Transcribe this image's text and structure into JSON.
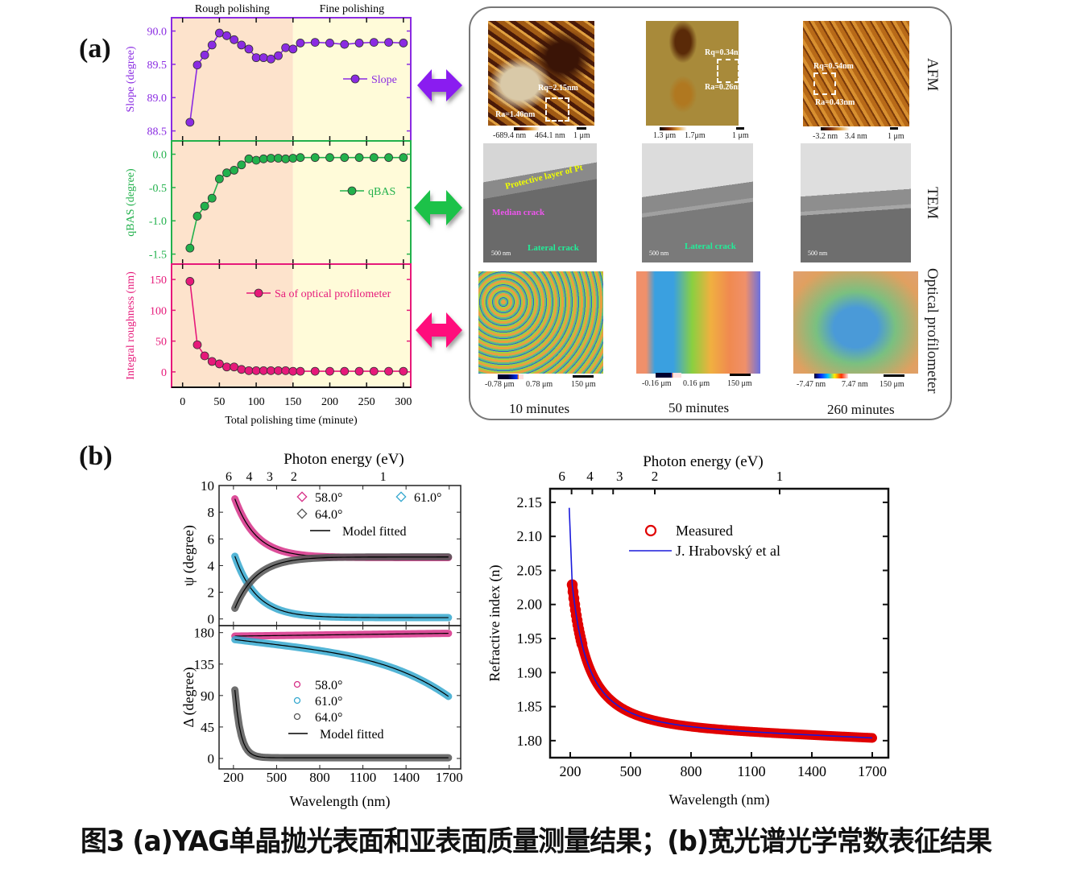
{
  "panel_a_label": "(a)",
  "panel_b_label": "(b)",
  "caption": "图3 (a)YAG单晶抛光表面和亚表面质量测量结果；(b)宽光谱光学常数表征结果",
  "colors": {
    "slope": "#8a2be2",
    "qbas": "#22b14c",
    "sa": "#e6197a",
    "rough_bg": "#fde3cc",
    "fine_bg": "#fffbd9",
    "measured": "#e00000",
    "hrabovsky": "#1a1adb",
    "psi_58": "#d62f87",
    "psi_61": "#35a8cf",
    "psi_64": "#555555"
  },
  "chart_data": [
    {
      "type": "line",
      "id": "polishing",
      "regions": [
        "Rough polishing",
        "Fine polishing"
      ],
      "region_split_x": 150,
      "xlabel": "Total polishing time (minute)",
      "x_ticks": [
        0,
        50,
        100,
        150,
        200,
        250,
        300
      ],
      "xlim": [
        -15,
        310
      ],
      "x": [
        10,
        20,
        30,
        40,
        50,
        60,
        70,
        80,
        90,
        100,
        110,
        120,
        130,
        140,
        150,
        160,
        180,
        200,
        220,
        240,
        260,
        280,
        300
      ],
      "subplots": [
        {
          "name": "Slope",
          "ylabel": "Slope (degree)",
          "ylim": [
            88.35,
            90.2
          ],
          "y_ticks": [
            "88.5",
            "89.0",
            "89.5",
            "90.0"
          ],
          "y_tick_values": [
            88.5,
            89.0,
            89.5,
            90.0
          ],
          "values": [
            88.63,
            89.49,
            89.64,
            89.79,
            89.97,
            89.93,
            89.87,
            89.79,
            89.73,
            89.6,
            89.6,
            89.58,
            89.63,
            89.75,
            89.73,
            89.82,
            89.83,
            89.82,
            89.8,
            89.82,
            89.83,
            89.83,
            89.82
          ],
          "legend": "Slope"
        },
        {
          "name": "qBAS",
          "ylabel": "qBAS (degree)",
          "ylim": [
            -1.65,
            0.2
          ],
          "y_ticks": [
            "-1.5",
            "-1.0",
            "-0.5",
            "0.0"
          ],
          "y_tick_values": [
            -1.5,
            -1.0,
            -0.5,
            0.0
          ],
          "values": [
            -1.41,
            -0.93,
            -0.78,
            -0.66,
            -0.37,
            -0.28,
            -0.24,
            -0.16,
            -0.07,
            -0.09,
            -0.07,
            -0.06,
            -0.06,
            -0.07,
            -0.06,
            -0.05,
            -0.05,
            -0.05,
            -0.05,
            -0.05,
            -0.05,
            -0.05,
            -0.05
          ],
          "legend": "qBAS"
        },
        {
          "name": "Sa",
          "ylabel": "Integral roughness (nm)",
          "ylim": [
            -25,
            175
          ],
          "y_ticks": [
            "0",
            "50",
            "100",
            "150"
          ],
          "y_tick_values": [
            0,
            50,
            100,
            150
          ],
          "values": [
            147,
            44,
            26,
            17,
            13,
            8,
            8,
            4,
            2,
            2,
            2,
            2,
            2,
            2,
            1,
            1,
            1,
            1,
            1,
            1,
            1,
            1,
            1
          ],
          "legend": "Sa of optical profilometer"
        }
      ]
    },
    {
      "type": "line",
      "id": "psi",
      "top_axis_label": "Photon energy (eV)",
      "top_ticks": [
        "6",
        "4",
        "3",
        "2",
        "1"
      ],
      "ylabel": "ψ (degree)",
      "ylim": [
        -0.5,
        10
      ],
      "y_ticks": [
        0,
        2,
        4,
        6,
        8,
        10
      ],
      "xlim": [
        100,
        1780
      ],
      "series": [
        {
          "name": "58.0°",
          "start": 9.0,
          "end": 4.6
        },
        {
          "name": "61.0°",
          "start": 4.7,
          "end": 0.1
        },
        {
          "name": "64.0°",
          "start": 0.8,
          "end": 4.65
        }
      ],
      "legend": [
        "58.0°",
        "61.0°",
        "64.0°",
        "Model fitted"
      ]
    },
    {
      "type": "line",
      "id": "delta",
      "xlabel": "Wavelength (nm)",
      "ylabel": "Δ (degree)",
      "x_ticks": [
        200,
        500,
        800,
        1100,
        1400,
        1700
      ],
      "ylim": [
        -15,
        190
      ],
      "y_ticks": [
        0,
        45,
        90,
        135,
        180
      ],
      "xlim": [
        100,
        1780
      ],
      "series": [
        {
          "name": "58.0°",
          "start": 175,
          "end": 179
        },
        {
          "name": "61.0°",
          "start": 170,
          "end": 88
        },
        {
          "name": "64.0°",
          "start": 98,
          "end": 1
        }
      ],
      "legend": [
        "58.0°",
        "61.0°",
        "64.0°",
        "Model fitted"
      ]
    },
    {
      "type": "scatter",
      "id": "refractive",
      "top_axis_label": "Photon energy (eV)",
      "top_ticks": [
        "6",
        "4",
        "3",
        "2",
        "1"
      ],
      "xlabel": "Wavelength (nm)",
      "ylabel": "Refractive index (n)",
      "x_ticks": [
        200,
        500,
        800,
        1100,
        1400,
        1700
      ],
      "xlim": [
        100,
        1780
      ],
      "ylim": [
        1.775,
        2.17
      ],
      "y_ticks": [
        "1.80",
        "1.85",
        "1.90",
        "1.95",
        "2.00",
        "2.05",
        "2.10",
        "2.15"
      ],
      "y_tick_values": [
        1.8,
        1.85,
        1.9,
        1.95,
        2.0,
        2.05,
        2.1,
        2.15
      ],
      "measured_range_nm": [
        210,
        1700
      ],
      "measured_endpoints": [
        2.058,
        1.804
      ],
      "model_range_nm": [
        195,
        1700
      ],
      "model_endpoints": [
        2.142,
        1.804
      ],
      "legend": [
        "Measured",
        "J. Hrabovský et al"
      ]
    }
  ],
  "right_panel": {
    "row_labels": [
      "AFM",
      "TEM",
      "Optical profilometer"
    ],
    "times": [
      "10 minutes",
      "50 minutes",
      "260 minutes"
    ],
    "afm": [
      {
        "rq": "Rq=2.15nm",
        "ra": "Ra=1.40nm",
        "min": "-689.4 nm",
        "max": "464.1 nm",
        "scale": "1 μm"
      },
      {
        "rq": "Rq=0.34nm",
        "ra": "Ra=0.26nm",
        "min": "1.3 μm",
        "max": "1.7μm",
        "scale": "1 μm"
      },
      {
        "rq": "Rq=0.54nm",
        "ra": "Ra=0.43nm",
        "min": "-3.2 nm",
        "max": "3.4 nm",
        "scale": "1 μm"
      }
    ],
    "tem": [
      {
        "scale": "500 nm",
        "protective": "Protective layer of Pt",
        "median": "Median crack",
        "lateral": "Lateral crack"
      },
      {
        "scale": "500 nm",
        "lateral": "Lateral crack"
      },
      {
        "scale": "500 nm"
      }
    ],
    "profilometer": [
      {
        "min": "-0.78 μm",
        "max": "0.78 μm",
        "scale": "150 μm"
      },
      {
        "min": "-0.16 μm",
        "max": "0.16 μm",
        "scale": "150 μm"
      },
      {
        "min": "-7.47 nm",
        "max": "7.47 nm",
        "scale": "150 μm"
      }
    ]
  }
}
